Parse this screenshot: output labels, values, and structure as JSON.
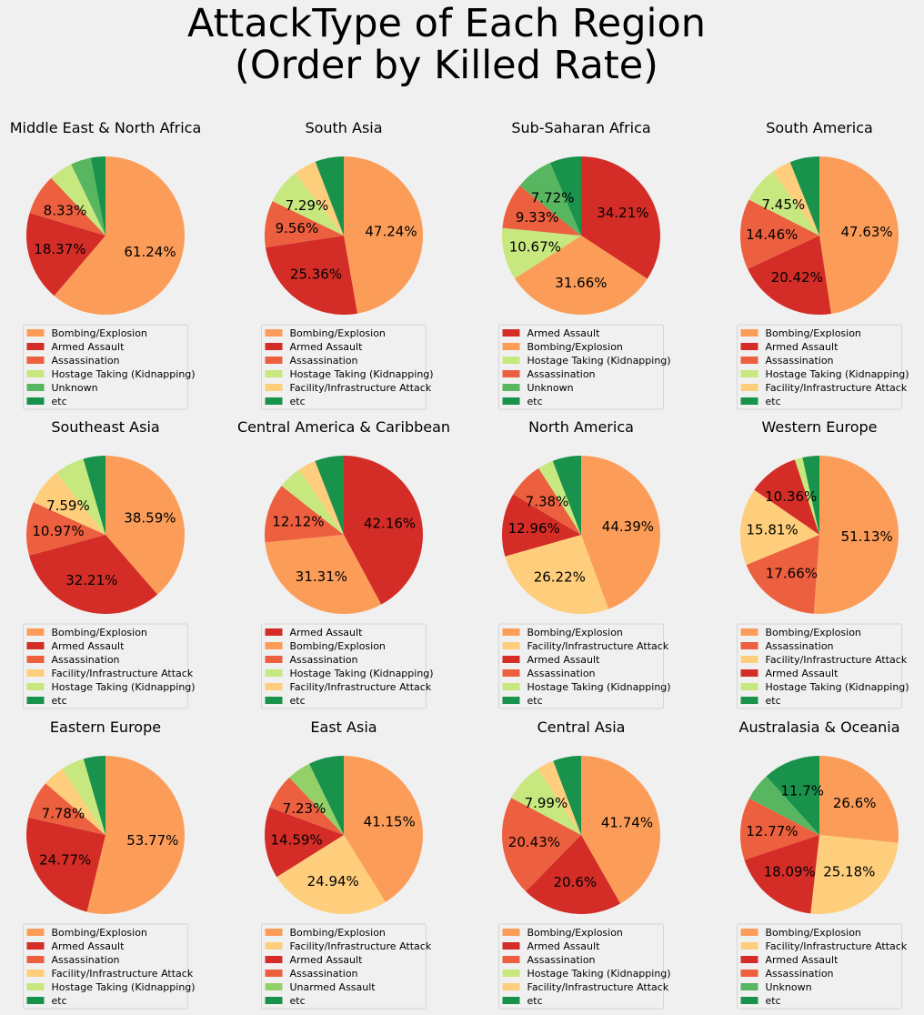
{
  "title_lines": [
    "AttackType of Each Region",
    "(Order by Killed Rate)"
  ],
  "colors": {
    "Bombing/Explosion": "#fb9d59",
    "Armed Assault": "#d42d27",
    "Assassination": "#ec5f3f",
    "Hostage Taking (Kidnapping)": "#c7e77f",
    "Facility/Infrastructure Attack": "#fece7c",
    "Unknown": "#57b65f",
    "Unarmed Assault": "#93d168",
    "etc": "#19924c"
  },
  "chart_data": [
    {
      "type": "pie",
      "title": "Middle East & North Africa",
      "labels": [
        "Bombing/Explosion",
        "Armed Assault",
        "Assassination",
        "Hostage Taking (Kidnapping)",
        "Unknown",
        "etc"
      ],
      "values": [
        61.24,
        18.37,
        8.33,
        4.9,
        4.2,
        2.96
      ],
      "pct_labels": [
        "61.24%",
        "18.37%",
        "8.33%",
        "",
        "",
        ""
      ]
    },
    {
      "type": "pie",
      "title": "South Asia",
      "labels": [
        "Bombing/Explosion",
        "Armed Assault",
        "Assassination",
        "Hostage Taking (Kidnapping)",
        "Facility/Infrastructure Attack",
        "etc"
      ],
      "values": [
        47.24,
        25.36,
        9.56,
        7.29,
        4.7,
        5.85
      ],
      "pct_labels": [
        "47.24%",
        "25.36%",
        "9.56%",
        "7.29%",
        "",
        ""
      ]
    },
    {
      "type": "pie",
      "title": "Sub-Saharan Africa",
      "labels": [
        "Armed Assault",
        "Bombing/Explosion",
        "Hostage Taking (Kidnapping)",
        "Assassination",
        "Unknown",
        "etc"
      ],
      "values": [
        34.21,
        31.66,
        10.67,
        9.33,
        7.72,
        6.41
      ],
      "pct_labels": [
        "34.21%",
        "31.66%",
        "10.67%",
        "9.33%",
        "7.72%",
        ""
      ]
    },
    {
      "type": "pie",
      "title": "South America",
      "labels": [
        "Bombing/Explosion",
        "Armed Assault",
        "Assassination",
        "Hostage Taking (Kidnapping)",
        "Facility/Infrastructure Attack",
        "etc"
      ],
      "values": [
        47.63,
        20.42,
        14.46,
        7.45,
        4.0,
        6.04
      ],
      "pct_labels": [
        "47.63%",
        "20.42%",
        "14.46%",
        "7.45%",
        "",
        ""
      ]
    },
    {
      "type": "pie",
      "title": "Southeast Asia",
      "labels": [
        "Bombing/Explosion",
        "Armed Assault",
        "Assassination",
        "Facility/Infrastructure Attack",
        "Hostage Taking (Kidnapping)",
        "etc"
      ],
      "values": [
        38.59,
        32.21,
        10.97,
        7.59,
        6.1,
        4.54
      ],
      "pct_labels": [
        "38.59%",
        "32.21%",
        "10.97%",
        "7.59%",
        "",
        ""
      ]
    },
    {
      "type": "pie",
      "title": "Central America & Caribbean",
      "labels": [
        "Armed Assault",
        "Bombing/Explosion",
        "Assassination",
        "Hostage Taking (Kidnapping)",
        "Facility/Infrastructure Attack",
        "etc"
      ],
      "values": [
        42.16,
        31.31,
        12.12,
        4.8,
        3.7,
        5.91
      ],
      "pct_labels": [
        "42.16%",
        "31.31%",
        "12.12%",
        "",
        "",
        ""
      ]
    },
    {
      "type": "pie",
      "title": "North America",
      "labels": [
        "Bombing/Explosion",
        "Facility/Infrastructure Attack",
        "Armed Assault",
        "Assassination",
        "Hostage Taking (Kidnapping)",
        "etc"
      ],
      "values": [
        44.39,
        26.22,
        12.96,
        7.38,
        3.2,
        5.85
      ],
      "pct_labels": [
        "44.39%",
        "26.22%",
        "12.96%",
        "7.38%",
        "",
        ""
      ]
    },
    {
      "type": "pie",
      "title": "Western Europe",
      "labels": [
        "Bombing/Explosion",
        "Assassination",
        "Facility/Infrastructure Attack",
        "Armed Assault",
        "Hostage Taking (Kidnapping)",
        "etc"
      ],
      "values": [
        51.13,
        17.66,
        15.81,
        10.36,
        1.6,
        3.44
      ],
      "pct_labels": [
        "51.13%",
        "17.66%",
        "15.81%",
        "10.36%",
        "",
        ""
      ]
    },
    {
      "type": "pie",
      "title": "Eastern Europe",
      "labels": [
        "Bombing/Explosion",
        "Armed Assault",
        "Assassination",
        "Facility/Infrastructure Attack",
        "Hostage Taking (Kidnapping)",
        "etc"
      ],
      "values": [
        53.77,
        24.77,
        7.78,
        4.5,
        4.7,
        4.48
      ],
      "pct_labels": [
        "53.77%",
        "24.77%",
        "7.78%",
        "",
        "",
        ""
      ]
    },
    {
      "type": "pie",
      "title": "East Asia",
      "labels": [
        "Bombing/Explosion",
        "Facility/Infrastructure Attack",
        "Armed Assault",
        "Assassination",
        "Unarmed Assault",
        "etc"
      ],
      "values": [
        41.15,
        24.94,
        14.59,
        7.23,
        4.9,
        7.19
      ],
      "pct_labels": [
        "41.15%",
        "24.94%",
        "14.59%",
        "7.23%",
        "",
        ""
      ]
    },
    {
      "type": "pie",
      "title": "Central Asia",
      "labels": [
        "Bombing/Explosion",
        "Armed Assault",
        "Assassination",
        "Hostage Taking (Kidnapping)",
        "Facility/Infrastructure Attack",
        "etc"
      ],
      "values": [
        41.74,
        20.6,
        20.43,
        7.99,
        3.5,
        5.74
      ],
      "pct_labels": [
        "41.74%",
        "20.6%",
        "20.43%",
        "7.99%",
        "",
        ""
      ]
    },
    {
      "type": "pie",
      "title": "Australasia & Oceania",
      "labels": [
        "Bombing/Explosion",
        "Facility/Infrastructure Attack",
        "Armed Assault",
        "Assassination",
        "Unknown",
        "etc"
      ],
      "values": [
        26.6,
        25.18,
        18.09,
        12.77,
        5.66,
        11.7
      ],
      "pct_labels": [
        "26.6%",
        "25.18%",
        "18.09%",
        "12.77%",
        "",
        "11.7%"
      ]
    }
  ]
}
